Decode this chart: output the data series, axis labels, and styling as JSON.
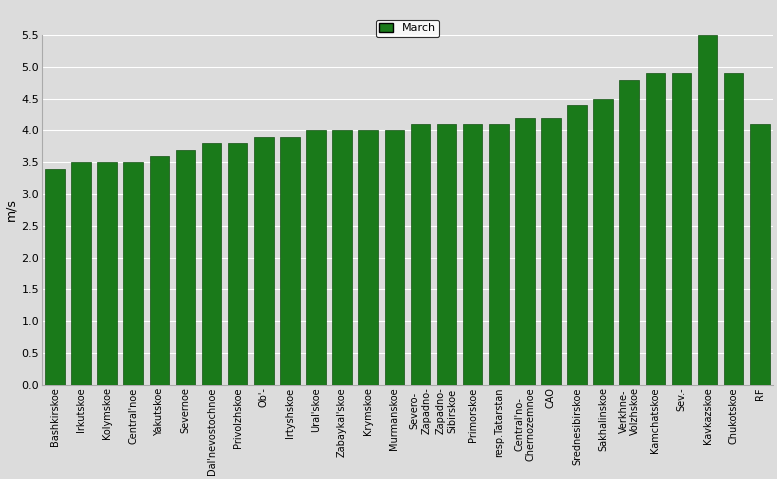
{
  "categories": [
    "Bashkirskoe",
    "Irkutskoe",
    "Kolymskoe",
    "Central'noe",
    "Yakutskoe",
    "Severnoe",
    "Dal'nevostochnoe",
    "Privolzhskoe",
    "Ob'-",
    "Irtyshskoe",
    "Ural'skoe",
    "Zabaykal'skoe",
    "Krymskoe",
    "Murmanskoe",
    "Severo-\nZapadno-",
    "Zapadno-\nSibirskoe",
    "Primorskoe",
    "resp.Tatarstan",
    "Central'no-\nChernozemnoe",
    "CAO",
    "Srednesibirskoe",
    "Sakhalinskoe",
    "Verkhne-\nVolzhskoe",
    "Kamchatskoe",
    "Sev.-",
    "Kavkazskoe",
    "Chukotskoe",
    "RF"
  ],
  "values": [
    3.4,
    3.5,
    3.5,
    3.5,
    3.6,
    3.7,
    3.8,
    3.8,
    3.9,
    3.9,
    4.0,
    4.0,
    4.0,
    4.0,
    4.1,
    4.1,
    4.1,
    4.1,
    4.2,
    4.2,
    4.4,
    4.5,
    4.8,
    4.9,
    4.9,
    5.5,
    4.9,
    4.1
  ],
  "bar_color": "#1a7a1a",
  "bar_edge_color": "#145214",
  "ylabel": "m/s",
  "ylim": [
    0,
    5.5
  ],
  "yticks": [
    0,
    0.5,
    1.0,
    1.5,
    2.0,
    2.5,
    3.0,
    3.5,
    4.0,
    4.5,
    5.0,
    5.5
  ],
  "legend_label": "March",
  "legend_color": "#1a7a1a",
  "plot_bg_color": "#dcdcdc",
  "fig_bg_color": "#dcdcdc",
  "grid_color": "#ffffff",
  "xlabel_fontsize": 7,
  "ylabel_fontsize": 9,
  "tick_fontsize": 8
}
